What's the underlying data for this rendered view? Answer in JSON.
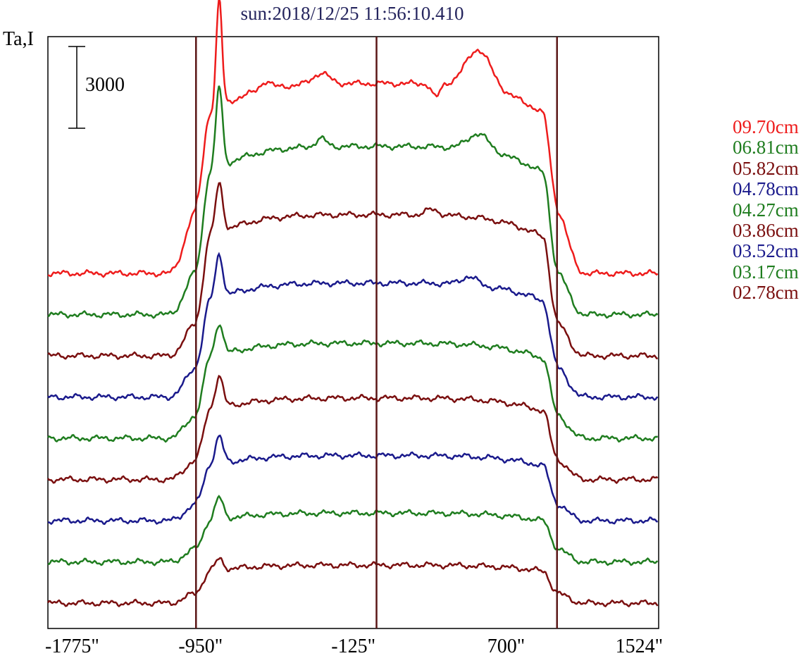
{
  "chart_data": {
    "type": "line",
    "title": "sun:2018/12/25 11:56:10.410",
    "ylabel": "Ta,I",
    "scale_bar_label": "3000",
    "xlim": [
      -1775,
      1524
    ],
    "x_ticks": [
      -1775,
      -950,
      -125,
      700,
      1524
    ],
    "x_tick_labels": [
      "-1775\"",
      "-950\"",
      "-125\"",
      "700\"",
      "1524\""
    ],
    "vertical_markers": [
      -975,
      0,
      975
    ],
    "grid": false,
    "legend_position": "right",
    "series": [
      {
        "name": "09.70cm",
        "color": "#ee1c1c",
        "peak": 0.7,
        "shoulder": 0.38,
        "bumps": [
          [
            -850,
            0.4,
            22
          ],
          [
            550,
            0.14,
            95
          ],
          [
            320,
            -0.05,
            30
          ],
          [
            -300,
            0.04,
            60
          ],
          [
            -600,
            0.03,
            40
          ]
        ]
      },
      {
        "name": "06.81cm",
        "color": "#1f7d1f",
        "peak": 0.62,
        "shoulder": 0.26,
        "bumps": [
          [
            -850,
            0.3,
            25
          ],
          [
            550,
            0.06,
            80
          ],
          [
            -300,
            0.03,
            40
          ]
        ]
      },
      {
        "name": "05.82cm",
        "color": "#7a0f0f",
        "peak": 0.52,
        "shoulder": 0.2,
        "bumps": [
          [
            -850,
            0.18,
            28
          ],
          [
            300,
            0.02,
            50
          ]
        ]
      },
      {
        "name": "04.78cm",
        "color": "#1a1a8c",
        "peak": 0.42,
        "shoulder": 0.18,
        "bumps": [
          [
            -850,
            0.16,
            28
          ],
          [
            500,
            0.03,
            60
          ]
        ]
      },
      {
        "name": "04.27cm",
        "color": "#1f7d1f",
        "peak": 0.35,
        "shoulder": 0.14,
        "bumps": [
          [
            -850,
            0.12,
            30
          ]
        ]
      },
      {
        "name": "03.86cm",
        "color": "#7a0f0f",
        "peak": 0.3,
        "shoulder": 0.12,
        "bumps": [
          [
            -850,
            0.12,
            30
          ]
        ]
      },
      {
        "name": "03.52cm",
        "color": "#1a1a8c",
        "peak": 0.24,
        "shoulder": 0.1,
        "bumps": [
          [
            -850,
            0.1,
            30
          ]
        ]
      },
      {
        "name": "03.17cm",
        "color": "#1f7d1f",
        "peak": 0.18,
        "shoulder": 0.08,
        "bumps": [
          [
            -850,
            0.08,
            30
          ]
        ]
      },
      {
        "name": "02.78cm",
        "color": "#7a0f0f",
        "peak": 0.14,
        "shoulder": 0.06,
        "bumps": [
          [
            -850,
            0.04,
            30
          ]
        ]
      }
    ]
  }
}
